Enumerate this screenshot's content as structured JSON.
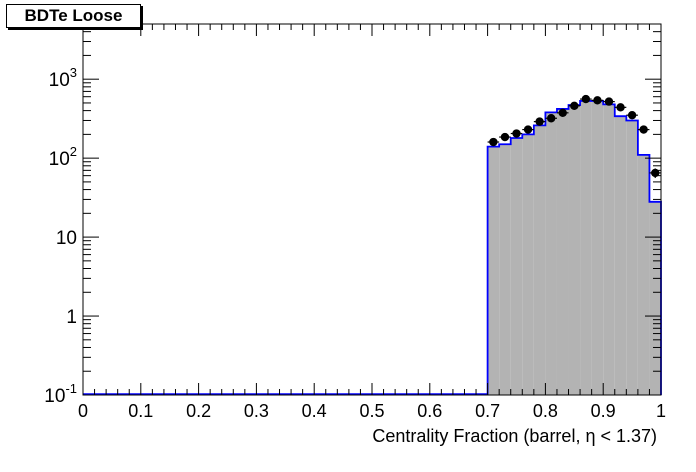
{
  "title": "BDTe Loose",
  "chart_data": {
    "type": "histogram",
    "title": "BDTe Loose",
    "xlabel": "Centrality Fraction (barrel,  η < 1.37)",
    "ylabel": "",
    "xlim": [
      0,
      1
    ],
    "ylim": [
      0.1,
      5000
    ],
    "yscale": "log",
    "x_ticks": [
      0,
      0.1,
      0.2,
      0.3,
      0.4,
      0.5,
      0.6,
      0.7,
      0.8,
      0.9,
      1
    ],
    "x_tick_labels": [
      "0",
      "0.1",
      "0.2",
      "0.3",
      "0.4",
      "0.5",
      "0.6",
      "0.7",
      "0.8",
      "0.9",
      "1"
    ],
    "y_ticks": [
      0.1,
      1,
      10,
      100,
      1000
    ],
    "y_tick_labels": [
      {
        "base": "10",
        "exp": "-1"
      },
      {
        "base": "1",
        "exp": ""
      },
      {
        "base": "10",
        "exp": ""
      },
      {
        "base": "10",
        "exp": "2"
      },
      {
        "base": "10",
        "exp": "3"
      }
    ],
    "bin_width": 0.02,
    "series": [
      {
        "kind": "filled-histogram",
        "fill_color": "#b3b3b3",
        "line_color": "#0000ff",
        "x": [
          0.7,
          0.72,
          0.74,
          0.76,
          0.78,
          0.8,
          0.82,
          0.84,
          0.86,
          0.88,
          0.9,
          0.92,
          0.94,
          0.96,
          0.98
        ],
        "values": [
          140,
          150,
          180,
          200,
          260,
          380,
          420,
          470,
          530,
          530,
          480,
          340,
          300,
          110,
          28
        ]
      },
      {
        "kind": "points-with-errors",
        "color": "#000000",
        "x": [
          0.71,
          0.73,
          0.75,
          0.77,
          0.79,
          0.81,
          0.83,
          0.85,
          0.87,
          0.89,
          0.91,
          0.93,
          0.95,
          0.97,
          0.99
        ],
        "values": [
          160,
          185,
          205,
          230,
          290,
          320,
          375,
          460,
          560,
          540,
          520,
          440,
          350,
          230,
          65
        ],
        "errors": [
          13,
          14,
          14,
          15,
          17,
          18,
          19,
          21,
          24,
          23,
          23,
          21,
          19,
          15,
          9
        ]
      }
    ],
    "grid": false,
    "colors": {
      "axis": "#000000",
      "fill": "#b3b3b3",
      "line": "#0000ff",
      "points": "#000000"
    }
  }
}
